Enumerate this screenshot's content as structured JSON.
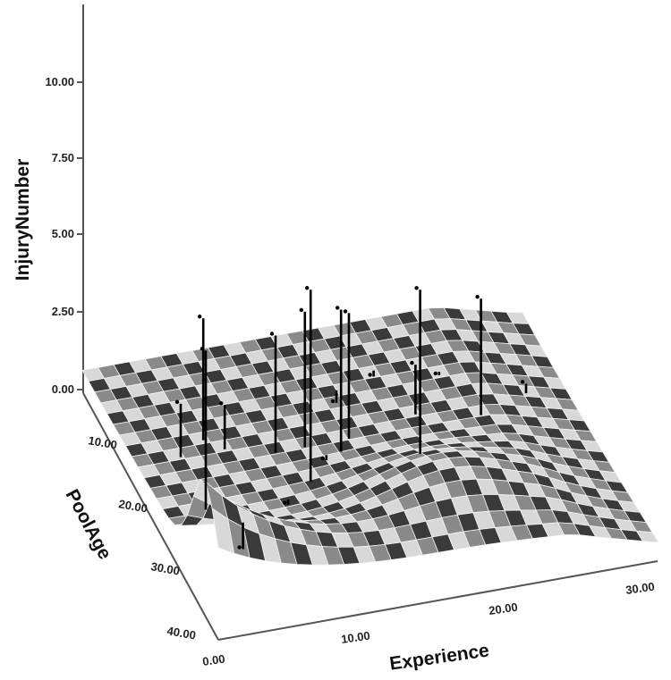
{
  "chart_data": {
    "type": "surface-3d-with-spikes",
    "title": "",
    "axes": {
      "z": {
        "label": "InjuryNumber",
        "ticks": [
          "0.00",
          "2.50",
          "5.00",
          "7.50",
          "10.00"
        ],
        "range": [
          0,
          12
        ]
      },
      "y": {
        "label": "PoolAge",
        "ticks": [
          "10.00",
          "20.00",
          "30.00",
          "40.00"
        ],
        "range": [
          0,
          42
        ]
      },
      "x": {
        "label": "Experience",
        "ticks": [
          "0.00",
          "10.00",
          "20.00",
          "30.00"
        ],
        "range": [
          0,
          32
        ]
      }
    },
    "grid": false,
    "legend": "none",
    "colors": {
      "surface_dark": "#3a3a3a",
      "surface_light": "#d8d8d8",
      "spike": "#000000",
      "axis": "#555555"
    },
    "points": [
      {
        "experience": 1,
        "pool_age": 8,
        "injury": 7.7
      },
      {
        "experience": 3,
        "pool_age": 24,
        "injury": 2.6
      },
      {
        "experience": 5,
        "pool_age": 26,
        "injury": 4.8
      },
      {
        "experience": 6,
        "pool_age": 24,
        "injury": 2.3
      },
      {
        "experience": 9,
        "pool_age": 22,
        "injury": 4.7
      },
      {
        "experience": 10,
        "pool_age": 16,
        "injury": 7.3
      },
      {
        "experience": 11,
        "pool_age": 22,
        "injury": 5.3
      },
      {
        "experience": 13,
        "pool_age": 20,
        "injury": 5.6
      },
      {
        "experience": 14,
        "pool_age": 22,
        "injury": 5.0
      },
      {
        "experience": 17,
        "pool_age": 14,
        "injury": 7.1
      },
      {
        "experience": 19,
        "pool_age": 24,
        "injury": 2.5
      },
      {
        "experience": 23,
        "pool_age": 22,
        "injury": 4.7
      },
      {
        "experience": 4,
        "pool_age": 10,
        "injury": 0.6
      },
      {
        "experience": 8,
        "pool_age": 14,
        "injury": 0.9
      },
      {
        "experience": 12,
        "pool_age": 20,
        "injury": 0.8
      },
      {
        "experience": 15,
        "pool_age": 30,
        "injury": 0.4
      },
      {
        "experience": 18,
        "pool_age": 32,
        "injury": 0.6
      },
      {
        "experience": 22,
        "pool_age": 30,
        "injury": 0.7
      },
      {
        "experience": 27,
        "pool_age": 26,
        "injury": 0.8
      }
    ]
  }
}
